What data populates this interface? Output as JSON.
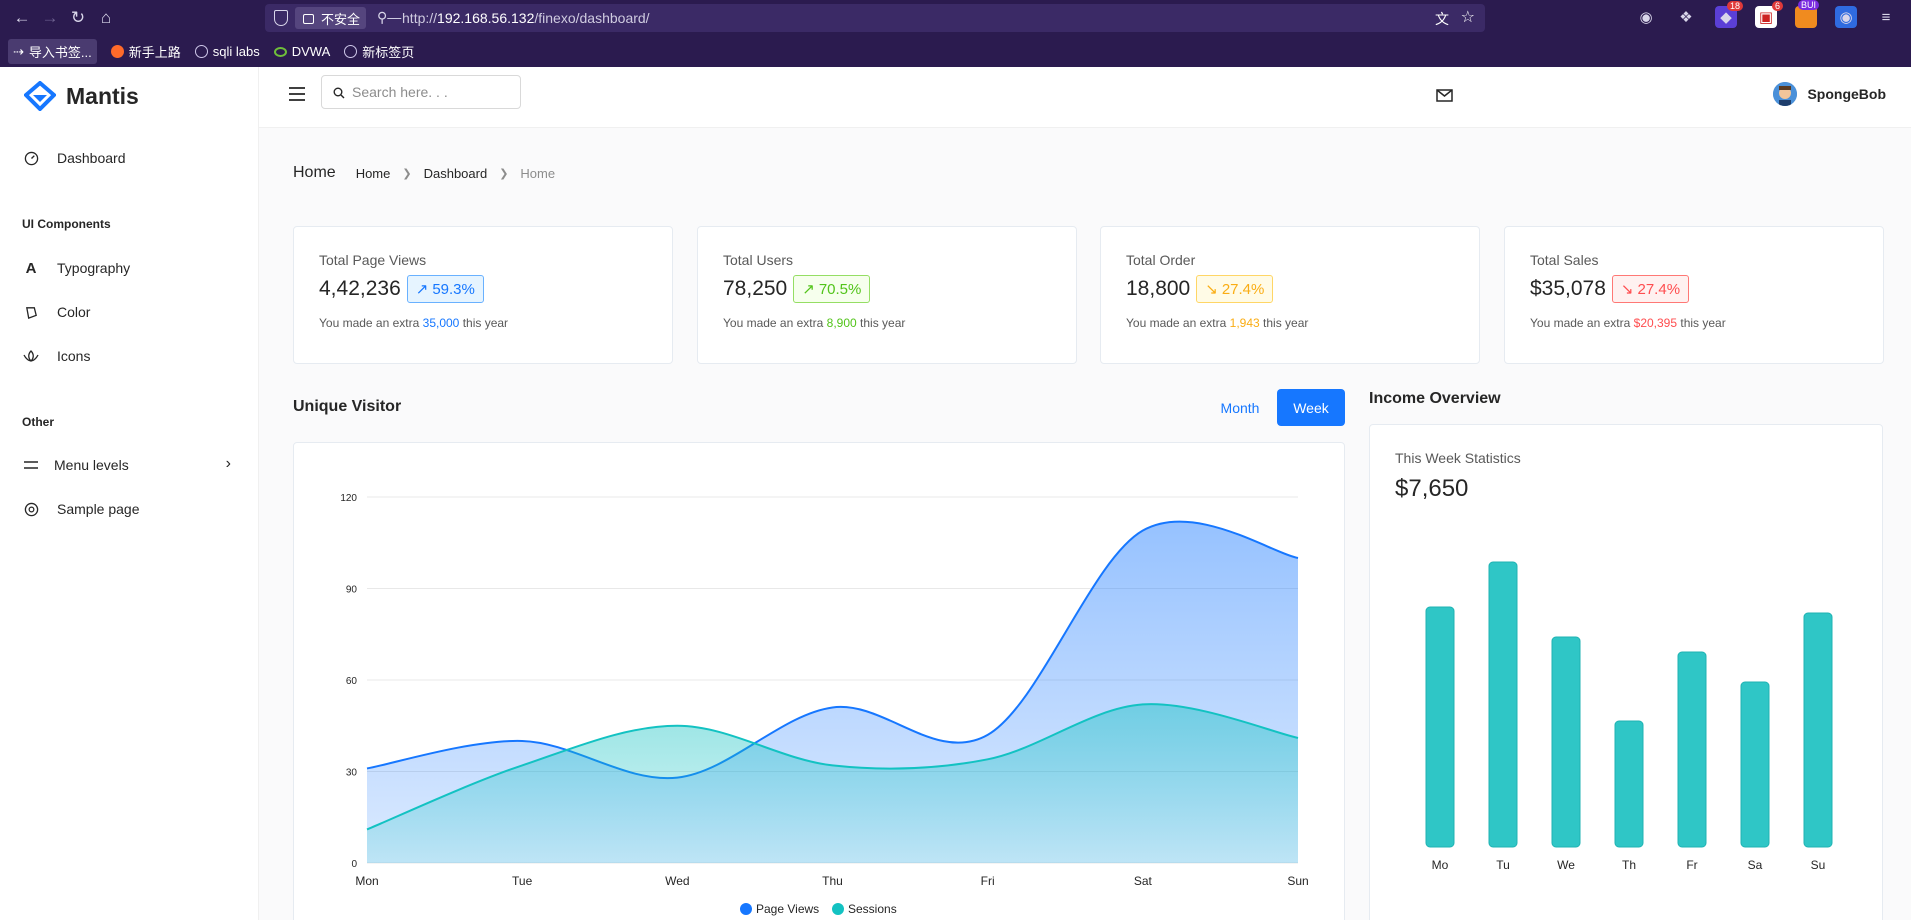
{
  "browser": {
    "insecure_label": "不安全",
    "url_prefix": "http://",
    "url_host": "192.168.56.132",
    "url_path": "/finexo/dashboard/",
    "bookmarks": [
      "导入书签...",
      "新手上路",
      "sqli labs",
      "DVWA",
      "新标签页"
    ],
    "ext_badges": [
      "18",
      "6",
      "BUI"
    ]
  },
  "app": {
    "name": "Mantis"
  },
  "sidebar": {
    "items": [
      {
        "label": "Dashboard",
        "icon": "dashboard-icon"
      },
      {
        "label": "Typography",
        "icon": "font-icon"
      },
      {
        "label": "Color",
        "icon": "bg-colors-icon"
      },
      {
        "label": "Icons",
        "icon": "lotus-icon"
      },
      {
        "label": "Menu levels",
        "icon": "menu-icon"
      },
      {
        "label": "Sample page",
        "icon": "chrome-icon"
      }
    ],
    "groups": [
      "UI Components",
      "Other"
    ]
  },
  "header": {
    "search_placeholder": "Search here. . .",
    "user_name": "SpongeBob"
  },
  "breadcrumb": {
    "title": "Home",
    "items": [
      "Home",
      "Dashboard",
      "Home"
    ]
  },
  "stats": [
    {
      "label": "Total Page Views",
      "value": "4,42,236",
      "change": "59.3%",
      "trend": "up",
      "color": "#1677ff",
      "note_prefix": "You made an extra",
      "extra": "35,000",
      "note_suffix": "this year"
    },
    {
      "label": "Total Users",
      "value": "78,250",
      "change": "70.5%",
      "trend": "up",
      "color": "#52c41a",
      "note_prefix": "You made an extra",
      "extra": "8,900",
      "note_suffix": "this year"
    },
    {
      "label": "Total Order",
      "value": "18,800",
      "change": "27.4%",
      "trend": "down",
      "color": "#faad14",
      "note_prefix": "You made an extra",
      "extra": "1,943",
      "note_suffix": "this year"
    },
    {
      "label": "Total Sales",
      "value": "$35,078",
      "change": "27.4%",
      "trend": "down",
      "color": "#ff4d4f",
      "note_prefix": "You made an extra",
      "extra": "$20,395",
      "note_suffix": "this year"
    }
  ],
  "unique_visitor": {
    "title": "Unique Visitor",
    "tabs": [
      "Month",
      "Week"
    ],
    "active_tab": "Week"
  },
  "income": {
    "title": "Income Overview",
    "subtitle": "This Week Statistics",
    "amount": "$7,650"
  },
  "chart_data": [
    {
      "type": "area",
      "categories": [
        "Mon",
        "Tue",
        "Wed",
        "Thu",
        "Fri",
        "Sat",
        "Sun"
      ],
      "ylim": [
        0,
        120
      ],
      "yticks": [
        0,
        30,
        60,
        90,
        120
      ],
      "grid": true,
      "legend": "bottom-center",
      "series": [
        {
          "name": "Page Views",
          "color": "#1677ff",
          "values": [
            31,
            40,
            28,
            51,
            42,
            109,
            100
          ]
        },
        {
          "name": "Sessions",
          "color": "#13c2c2",
          "values": [
            11,
            32,
            45,
            32,
            34,
            52,
            41
          ]
        }
      ]
    },
    {
      "type": "bar",
      "categories": [
        "Mo",
        "Tu",
        "We",
        "Th",
        "Fr",
        "Sa",
        "Su"
      ],
      "values": [
        80,
        95,
        70,
        42,
        65,
        55,
        78
      ],
      "color": "#2fc6c6",
      "grid": false,
      "ylim": [
        0,
        100
      ]
    }
  ]
}
